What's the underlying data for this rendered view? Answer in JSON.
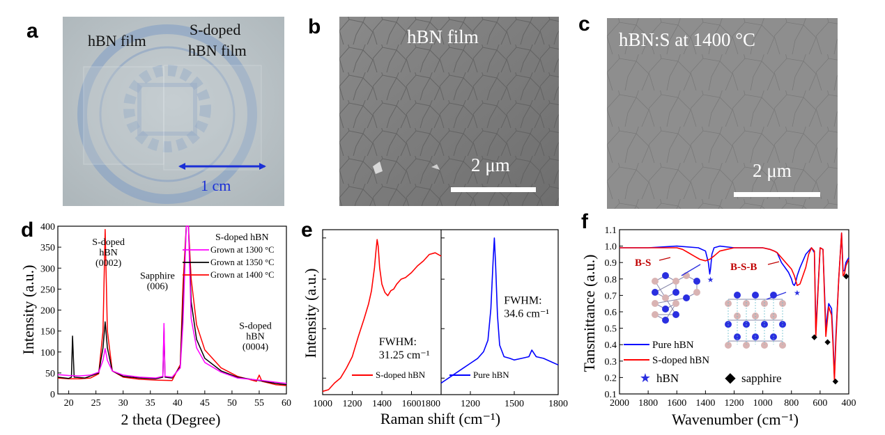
{
  "panels": {
    "a": {
      "label": "a",
      "left_text": "hBN film",
      "right_text_1": "S-doped",
      "right_text_2": "hBN film",
      "scale_label": "1 cm"
    },
    "b": {
      "label": "b",
      "caption": "hBN film",
      "scale_label": "2 μm"
    },
    "c": {
      "label": "c",
      "caption": "hBN:S at 1400 °C",
      "scale_label": "2 μm"
    },
    "d": {
      "label": "d"
    },
    "e": {
      "label": "e"
    },
    "f": {
      "label": "f"
    }
  },
  "chart_data": [
    {
      "id": "d",
      "type": "line",
      "xlabel": "2 theta (Degree)",
      "ylabel": "Intensity (a.u.)",
      "xlim": [
        18,
        60
      ],
      "ylim": [
        0,
        400
      ],
      "xticks": [
        20,
        25,
        30,
        35,
        40,
        45,
        50,
        55,
        60
      ],
      "yticks": [
        0,
        50,
        100,
        150,
        200,
        250,
        300,
        350,
        400
      ],
      "legend_title": "S-doped hBN",
      "legend_position": "top-right",
      "series": [
        {
          "name": "Grown at 1300 °C",
          "color": "#ff00ff",
          "x": [
            18,
            20,
            22,
            24,
            25.5,
            26.3,
            26.7,
            27.1,
            28,
            30,
            33,
            36,
            37.3,
            37.5,
            37.7,
            39,
            40.5,
            41.0,
            41.6,
            42.0,
            42.5,
            43.5,
            45,
            48,
            51,
            55,
            58,
            60
          ],
          "y": [
            46,
            44,
            43,
            45,
            52,
            80,
            108,
            80,
            55,
            45,
            40,
            38,
            42,
            168,
            42,
            40,
            62,
            170,
            400,
            400,
            180,
            110,
            75,
            52,
            38,
            33,
            28,
            25
          ]
        },
        {
          "name": "Grown at 1350 °C",
          "color": "#000000",
          "x": [
            18,
            20,
            20.5,
            20.7,
            21,
            23,
            25.5,
            26.3,
            26.7,
            27.1,
            28,
            30,
            33,
            36,
            37.3,
            37.5,
            37.7,
            39,
            40.5,
            41.0,
            41.6,
            42.0,
            42.5,
            43.5,
            45,
            48,
            51,
            55,
            58,
            60
          ],
          "y": [
            40,
            37,
            40,
            138,
            40,
            38,
            50,
            110,
            172,
            110,
            55,
            42,
            38,
            36,
            40,
            158,
            40,
            38,
            65,
            210,
            400,
            400,
            220,
            130,
            85,
            55,
            40,
            32,
            25,
            22
          ]
        },
        {
          "name": "Grown at 1400 °C",
          "color": "#ff0000",
          "x": [
            18,
            20,
            22,
            24,
            25.5,
            26.3,
            26.7,
            27.1,
            28,
            30,
            33,
            36,
            39,
            40.5,
            41.0,
            41.6,
            42.0,
            42.5,
            43.5,
            45,
            48,
            51,
            54.5,
            55.0,
            55.5,
            58,
            60
          ],
          "y": [
            38,
            36,
            36,
            38,
            48,
            150,
            392,
            150,
            55,
            40,
            35,
            33,
            32,
            70,
            260,
            400,
            400,
            275,
            165,
            105,
            62,
            42,
            30,
            45,
            30,
            22,
            20
          ]
        }
      ],
      "annotations": [
        {
          "text": "S-doped",
          "x": 27.3,
          "y": 355
        },
        {
          "text": "hBN",
          "x": 27.3,
          "y": 330
        },
        {
          "text": "(0002)",
          "x": 27.3,
          "y": 305
        },
        {
          "text": "Sapphire",
          "x": 36.3,
          "y": 275
        },
        {
          "text": "(006)",
          "x": 36.3,
          "y": 250
        },
        {
          "text": "S-doped",
          "x": 54.3,
          "y": 155
        },
        {
          "text": "hBN",
          "x": 54.3,
          "y": 130
        },
        {
          "text": "(0004)",
          "x": 54.3,
          "y": 105
        }
      ]
    },
    {
      "id": "e",
      "type": "line",
      "xlabel": "Raman shift (cm⁻¹)",
      "ylabel": "Intensity (a.u.)",
      "subpanels": [
        {
          "xlim": [
            1000,
            1800
          ],
          "xticks": [
            1000,
            1200,
            1400,
            1600,
            1800
          ],
          "ylim": [
            0,
            1
          ],
          "series": [
            {
              "name": "S-doped hBN",
              "color": "#ff0000",
              "x": [
                1000,
                1040,
                1080,
                1120,
                1160,
                1200,
                1240,
                1280,
                1310,
                1330,
                1350,
                1360,
                1368,
                1375,
                1385,
                1400,
                1420,
                1440,
                1460,
                1480,
                1500,
                1530,
                1560,
                1600,
                1640,
                1680,
                1720,
                1760,
                1800
              ],
              "y": [
                0.02,
                0.03,
                0.07,
                0.1,
                0.16,
                0.23,
                0.35,
                0.46,
                0.55,
                0.63,
                0.77,
                0.87,
                0.94,
                0.9,
                0.77,
                0.67,
                0.62,
                0.6,
                0.63,
                0.64,
                0.67,
                0.7,
                0.71,
                0.74,
                0.78,
                0.81,
                0.85,
                0.86,
                0.84
              ]
            }
          ],
          "annotations": [
            {
              "text": "FWHM:",
              "x": 1380,
              "y": 0.3
            },
            {
              "text": "31.25 cm⁻¹",
              "x": 1380,
              "y": 0.22
            }
          ]
        },
        {
          "xlim": [
            1000,
            1800
          ],
          "xticks": [
            1200,
            1500,
            1800
          ],
          "ylim": [
            0,
            1
          ],
          "series": [
            {
              "name": "Pure hBN",
              "color": "#0000ff",
              "x": [
                1000,
                1050,
                1100,
                1150,
                1200,
                1250,
                1290,
                1320,
                1340,
                1355,
                1364,
                1372,
                1385,
                1400,
                1430,
                1470,
                1500,
                1550,
                1600,
                1620,
                1650,
                1700,
                1750,
                1800
              ],
              "y": [
                0.07,
                0.1,
                0.13,
                0.16,
                0.19,
                0.22,
                0.26,
                0.33,
                0.52,
                0.8,
                0.95,
                0.8,
                0.48,
                0.3,
                0.23,
                0.22,
                0.21,
                0.22,
                0.23,
                0.27,
                0.23,
                0.22,
                0.2,
                0.18
              ]
            }
          ],
          "annotations": [
            {
              "text": "FWHM:",
              "x": 1430,
              "y": 0.55
            },
            {
              "text": "34.6 cm⁻¹",
              "x": 1430,
              "y": 0.47
            }
          ]
        }
      ]
    },
    {
      "id": "f",
      "type": "line",
      "xlabel": "Wavenumber (cm⁻¹)",
      "ylabel": "Tansmittance (a.u.)",
      "xlim": [
        2000,
        400
      ],
      "ylim": [
        0.1,
        1.1
      ],
      "xticks": [
        2000,
        1800,
        1600,
        1400,
        1200,
        1000,
        800,
        600,
        400
      ],
      "yticks": [
        0.1,
        0.2,
        0.3,
        0.4,
        0.5,
        0.6,
        0.7,
        0.8,
        0.9,
        1.0,
        1.1
      ],
      "legend_position": "bottom-left",
      "series": [
        {
          "name": "Pure hBN",
          "color": "#0000ff",
          "x": [
            2000,
            1800,
            1600,
            1450,
            1400,
            1380,
            1370,
            1365,
            1355,
            1340,
            1300,
            1200,
            1000,
            950,
            920,
            900,
            870,
            820,
            800,
            790,
            780,
            770,
            760,
            740,
            700,
            660,
            640,
            630,
            620,
            600,
            580,
            560,
            540,
            520,
            510,
            500,
            490,
            470,
            450,
            440,
            430,
            420,
            400
          ],
          "y": [
            0.99,
            0.99,
            1.0,
            0.99,
            0.97,
            0.9,
            0.83,
            0.86,
            0.95,
            0.99,
            1.0,
            0.99,
            0.99,
            0.98,
            0.97,
            0.96,
            0.9,
            0.84,
            0.8,
            0.77,
            0.76,
            0.78,
            0.82,
            0.87,
            0.95,
            0.99,
            0.96,
            0.5,
            0.65,
            0.99,
            0.98,
            0.5,
            0.65,
            0.62,
            0.43,
            0.2,
            0.45,
            0.8,
            1.08,
            0.85,
            0.85,
            0.9,
            0.93
          ]
        },
        {
          "name": "S-doped hBN",
          "color": "#ff0000",
          "x": [
            2000,
            1800,
            1700,
            1650,
            1600,
            1560,
            1520,
            1480,
            1440,
            1400,
            1370,
            1340,
            1300,
            1250,
            1200,
            1100,
            1000,
            950,
            920,
            900,
            870,
            840,
            800,
            780,
            760,
            740,
            720,
            700,
            680,
            660,
            640,
            630,
            620,
            600,
            580,
            560,
            540,
            520,
            510,
            500,
            490,
            470,
            450,
            440,
            430,
            420,
            400
          ],
          "y": [
            0.99,
            0.99,
            0.99,
            0.99,
            0.99,
            0.98,
            0.96,
            0.94,
            0.92,
            0.91,
            0.92,
            0.94,
            0.97,
            0.98,
            0.99,
            0.99,
            0.99,
            0.98,
            0.97,
            0.96,
            0.93,
            0.9,
            0.86,
            0.82,
            0.76,
            0.77,
            0.82,
            0.87,
            0.95,
            0.99,
            0.97,
            0.45,
            0.63,
            0.99,
            0.98,
            0.45,
            0.63,
            0.58,
            0.4,
            0.18,
            0.42,
            0.8,
            1.08,
            0.82,
            0.83,
            0.88,
            0.92
          ]
        }
      ],
      "annotations": [
        {
          "text": "B-S",
          "color": "#c00000"
        },
        {
          "text": "B-S-B",
          "color": "#c00000"
        },
        {
          "text": "hBN",
          "marker": "star",
          "color": "#0000ff"
        },
        {
          "text": "sapphire",
          "marker": "diamond",
          "color": "#000000"
        }
      ],
      "sapphire_markers": [
        {
          "x": 640,
          "y": 0.45
        },
        {
          "x": 548,
          "y": 0.42
        },
        {
          "x": 493,
          "y": 0.18
        },
        {
          "x": 418,
          "y": 0.82
        }
      ]
    }
  ]
}
